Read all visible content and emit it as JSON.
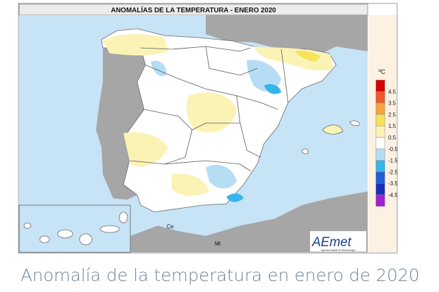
{
  "map": {
    "title": "ANOMALÍAS DE LA TEMPERATURA - ENERO 2020",
    "unit": "ºC",
    "legend": {
      "labels": [
        "4.5",
        "3.5",
        "2.5",
        "1.5",
        "0.5",
        "-0.5",
        "-1.5",
        "-2.5",
        "-3.5",
        "-4.5"
      ],
      "colors": [
        "#d40000",
        "#f0592b",
        "#f5a43e",
        "#f6e35a",
        "#fbf3b5",
        "#ffffff",
        "#b5ddf4",
        "#35b5e9",
        "#1f5fd6",
        "#1a2fb8",
        "#a21fd4"
      ]
    },
    "places": [
      "Ce",
      "Ml"
    ],
    "logo": {
      "name": "AEmet",
      "subtitle": "Agencia Estatal de Meteorología"
    }
  },
  "caption": "Anomalía de la temperatura en enero de 2020"
}
